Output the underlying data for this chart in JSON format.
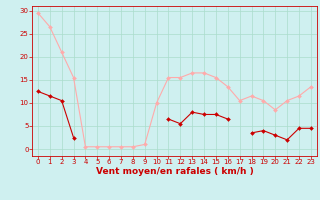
{
  "x": [
    0,
    1,
    2,
    3,
    4,
    5,
    6,
    7,
    8,
    9,
    10,
    11,
    12,
    13,
    14,
    15,
    16,
    17,
    18,
    19,
    20,
    21,
    22,
    23
  ],
  "y_dark": [
    12.5,
    11.5,
    10.5,
    2.5,
    null,
    null,
    null,
    null,
    null,
    null,
    null,
    6.5,
    5.5,
    8.0,
    7.5,
    7.5,
    6.5,
    null,
    3.5,
    4.0,
    3.0,
    2.0,
    4.5,
    4.5
  ],
  "y_light": [
    29.5,
    26.5,
    21.0,
    15.5,
    0.5,
    0.5,
    0.5,
    0.5,
    0.5,
    1.0,
    10.0,
    15.5,
    15.5,
    16.5,
    16.5,
    15.5,
    13.5,
    10.5,
    11.5,
    10.5,
    8.5,
    10.5,
    11.5,
    13.5
  ],
  "color_dark": "#cc0000",
  "color_light": "#ffaaaa",
  "bg_color": "#cff0f0",
  "grid_color": "#aaddcc",
  "xlabel": "Vent moyen/en rafales ( km/h )",
  "xlim": [
    -0.5,
    23.5
  ],
  "ylim": [
    -1.5,
    31
  ],
  "yticks": [
    0,
    5,
    10,
    15,
    20,
    25,
    30
  ],
  "xticks": [
    0,
    1,
    2,
    3,
    4,
    5,
    6,
    7,
    8,
    9,
    10,
    11,
    12,
    13,
    14,
    15,
    16,
    17,
    18,
    19,
    20,
    21,
    22,
    23
  ],
  "axis_label_fontsize": 6.5,
  "tick_fontsize": 5.0,
  "line_width": 0.8,
  "marker_size": 2.0
}
